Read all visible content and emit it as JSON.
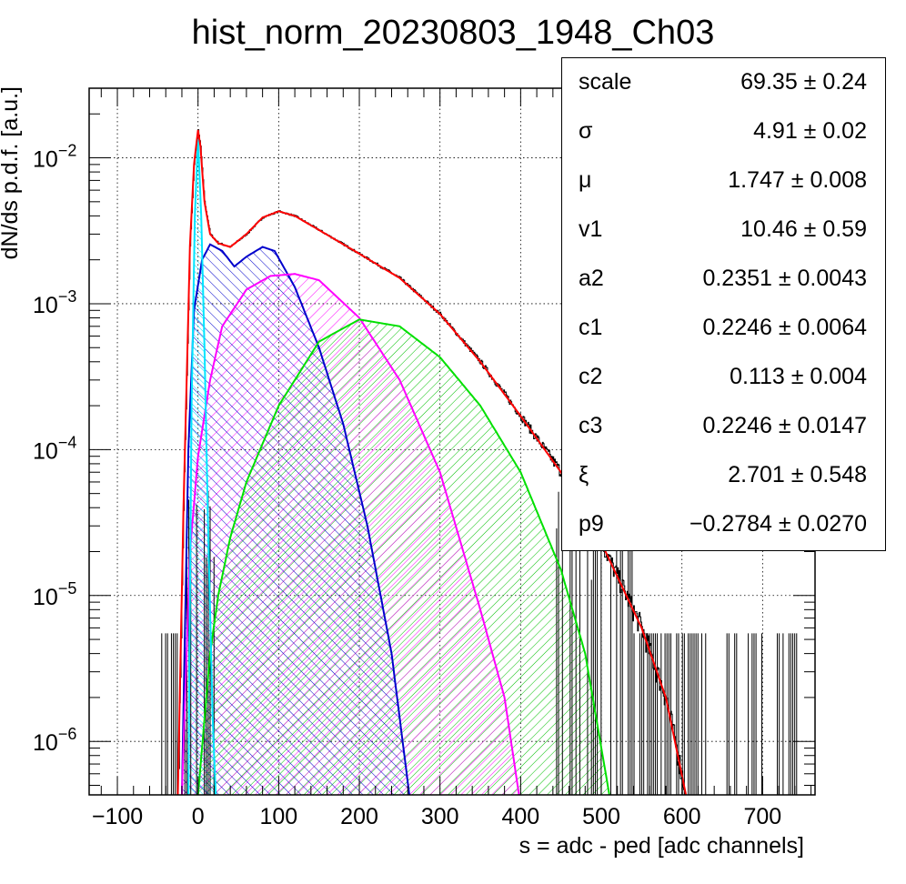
{
  "chart_data": {
    "type": "line",
    "title": "hist_norm_20230803_1948_Ch03",
    "xlabel": "s = adc - ped [adc channels]",
    "ylabel": "dN/ds p.d.f. [a.u.]",
    "xlim": [
      -135,
      765
    ],
    "ylim": [
      4.3e-07,
      0.03
    ],
    "yscale": "log",
    "grid": true,
    "xticks": [
      -100,
      0,
      100,
      200,
      300,
      400,
      500,
      600,
      700
    ],
    "xtick_labels": [
      "−100",
      "0",
      "100",
      "200",
      "300",
      "400",
      "500",
      "600",
      "700"
    ],
    "ytick_exponents": [
      "−2",
      "−3",
      "−4",
      "−5",
      "−6"
    ],
    "ytick_base": "10",
    "series": [
      {
        "color": "#ff0000",
        "kind": "total-fit",
        "points": [
          [
            -25,
            4.3e-07
          ],
          [
            -18,
            4e-05
          ],
          [
            -10,
            0.0025
          ],
          [
            -5,
            0.009
          ],
          [
            0,
            0.0155
          ],
          [
            3,
            0.012
          ],
          [
            8,
            0.005
          ],
          [
            15,
            0.003
          ],
          [
            25,
            0.0026
          ],
          [
            40,
            0.00245
          ],
          [
            60,
            0.003
          ],
          [
            80,
            0.0039
          ],
          [
            100,
            0.0043
          ],
          [
            120,
            0.004
          ],
          [
            150,
            0.0032
          ],
          [
            200,
            0.0022
          ],
          [
            250,
            0.0015
          ],
          [
            300,
            0.00085
          ],
          [
            350,
            0.0004
          ],
          [
            400,
            0.00017
          ],
          [
            450,
            7e-05
          ],
          [
            500,
            2.3e-05
          ],
          [
            550,
            6e-06
          ],
          [
            580,
            2e-06
          ],
          [
            605,
            4.3e-07
          ]
        ]
      },
      {
        "color": "#0000cc",
        "kind": "component",
        "points": [
          [
            -20,
            4.3e-07
          ],
          [
            -12,
            0.0001
          ],
          [
            -5,
            0.0009
          ],
          [
            5,
            0.002
          ],
          [
            15,
            0.00255
          ],
          [
            30,
            0.0023
          ],
          [
            45,
            0.0018
          ],
          [
            60,
            0.0021
          ],
          [
            80,
            0.00245
          ],
          [
            95,
            0.0023
          ],
          [
            120,
            0.0013
          ],
          [
            150,
            0.0005
          ],
          [
            180,
            0.00015
          ],
          [
            210,
            3e-05
          ],
          [
            240,
            4e-06
          ],
          [
            262,
            4.3e-07
          ]
        ]
      },
      {
        "color": "#ff00ff",
        "kind": "component",
        "points": [
          [
            -20,
            4.3e-07
          ],
          [
            -10,
            2e-05
          ],
          [
            0,
            9e-05
          ],
          [
            15,
            0.0003
          ],
          [
            30,
            0.0007
          ],
          [
            60,
            0.00125
          ],
          [
            90,
            0.00155
          ],
          [
            120,
            0.0016
          ],
          [
            150,
            0.00145
          ],
          [
            200,
            0.0008
          ],
          [
            250,
            0.0003
          ],
          [
            300,
            7e-05
          ],
          [
            350,
            8e-06
          ],
          [
            380,
            2e-06
          ],
          [
            398,
            4.3e-07
          ]
        ]
      },
      {
        "color": "#00e000",
        "kind": "component",
        "points": [
          [
            0,
            4.3e-07
          ],
          [
            15,
            4e-06
          ],
          [
            25,
            1e-05
          ],
          [
            40,
            2.5e-05
          ],
          [
            60,
            6e-05
          ],
          [
            100,
            0.0002
          ],
          [
            150,
            0.00055
          ],
          [
            200,
            0.00078
          ],
          [
            250,
            0.0007
          ],
          [
            300,
            0.00043
          ],
          [
            350,
            0.0002
          ],
          [
            400,
            7e-05
          ],
          [
            450,
            1.5e-05
          ],
          [
            480,
            4e-06
          ],
          [
            510,
            4.3e-07
          ]
        ]
      },
      {
        "color": "#00e5ff",
        "kind": "component",
        "points": [
          [
            -12,
            4.3e-07
          ],
          [
            -8,
            0.0002
          ],
          [
            -4,
            0.004
          ],
          [
            0,
            0.0135
          ],
          [
            4,
            0.004
          ],
          [
            8,
            0.0005
          ],
          [
            12,
            4e-05
          ],
          [
            18,
            1.5e-06
          ],
          [
            22,
            4.3e-07
          ]
        ]
      }
    ],
    "stats": [
      {
        "name": "scale",
        "value": "69.35 ± 0.24"
      },
      {
        "name": "σ",
        "value": "4.91 ± 0.02"
      },
      {
        "name": "μ",
        "value": "1.747 ± 0.008"
      },
      {
        "name": "v1",
        "value": "10.46 ± 0.59"
      },
      {
        "name": "a2",
        "value": "0.2351 ± 0.0043"
      },
      {
        "name": "c1",
        "value": "0.2246 ± 0.0064"
      },
      {
        "name": "c2",
        "value": "0.113 ± 0.004"
      },
      {
        "name": "c3",
        "value": "0.2246 ± 0.0147"
      },
      {
        "name": "ξ",
        "value": "2.701 ± 0.548"
      },
      {
        "name": "p9",
        "value": "−0.2784 ± 0.0270"
      }
    ]
  }
}
